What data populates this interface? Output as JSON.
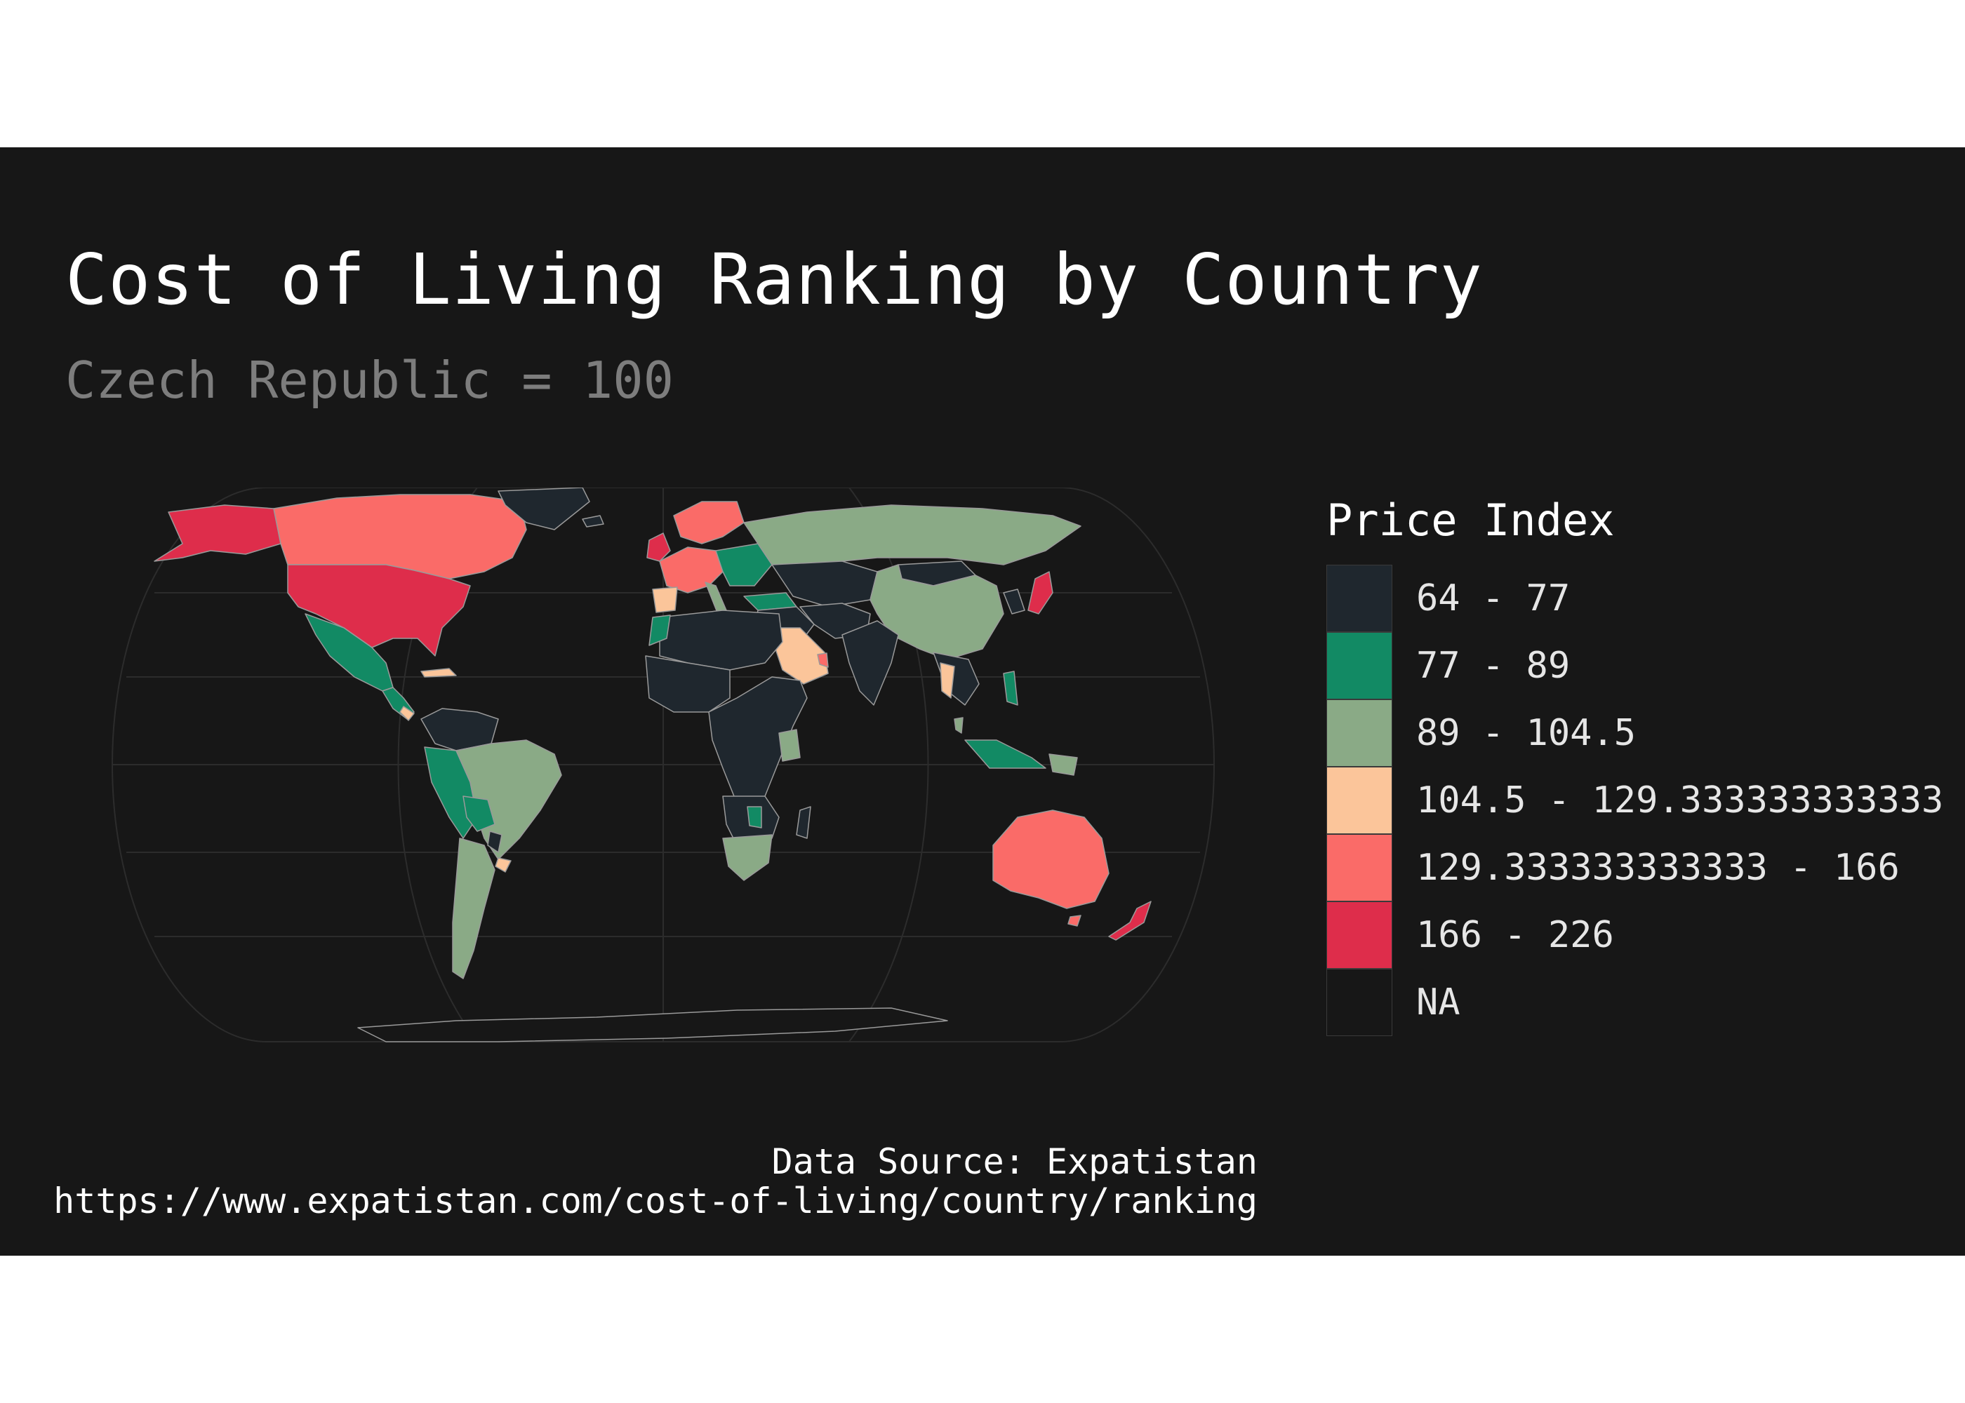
{
  "title": "Cost of Living Ranking by Country",
  "subtitle": "Czech Republic = 100",
  "legend": {
    "title": "Price Index",
    "items": [
      {
        "label": "64 - 77",
        "color": "#1f272e"
      },
      {
        "label": "77 - 89",
        "color": "#128a64"
      },
      {
        "label": "89 - 104.5",
        "color": "#8aaa86"
      },
      {
        "label": "104.5 - 129.333333333333",
        "color": "#fbc59a"
      },
      {
        "label": "129.333333333333 - 166",
        "color": "#fa6b68"
      },
      {
        "label": "166 - 226",
        "color": "#de2d4b"
      },
      {
        "label": "NA",
        "color": "#171717"
      }
    ]
  },
  "caption": {
    "line1": "Data Source: Expatistan",
    "line2": "https://www.expatistan.com/cost-of-living/country/ranking"
  },
  "map_colors": {
    "background": "#171717",
    "graticule": "#2c2c2c",
    "border": "#9a9a9a"
  }
}
